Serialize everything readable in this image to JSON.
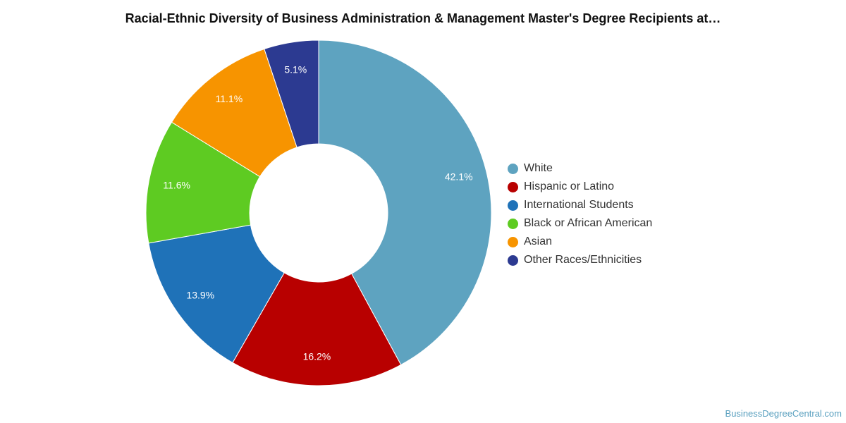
{
  "chart_data": {
    "type": "pie",
    "title": "Racial-Ethnic Diversity of Business Administration & Management Master's Degree Recipients at…",
    "legend_position": "right",
    "donut": true,
    "slices": [
      {
        "label": "White",
        "value": 42.1,
        "value_label": "42.1%",
        "color": "#5ea3c0"
      },
      {
        "label": "Hispanic or Latino",
        "value": 16.2,
        "value_label": "16.2%",
        "color": "#b80000"
      },
      {
        "label": "International Students",
        "value": 13.9,
        "value_label": "13.9%",
        "color": "#1f72b8"
      },
      {
        "label": "Black or African American",
        "value": 11.6,
        "value_label": "11.6%",
        "color": "#5ecb22"
      },
      {
        "label": "Asian",
        "value": 11.1,
        "value_label": "11.1%",
        "color": "#f79400"
      },
      {
        "label": "Other Races/Ethnicities",
        "value": 5.1,
        "value_label": "5.1%",
        "color": "#2c3a91"
      }
    ]
  },
  "footer": {
    "watermark": "BusinessDegreeCentral.com"
  }
}
